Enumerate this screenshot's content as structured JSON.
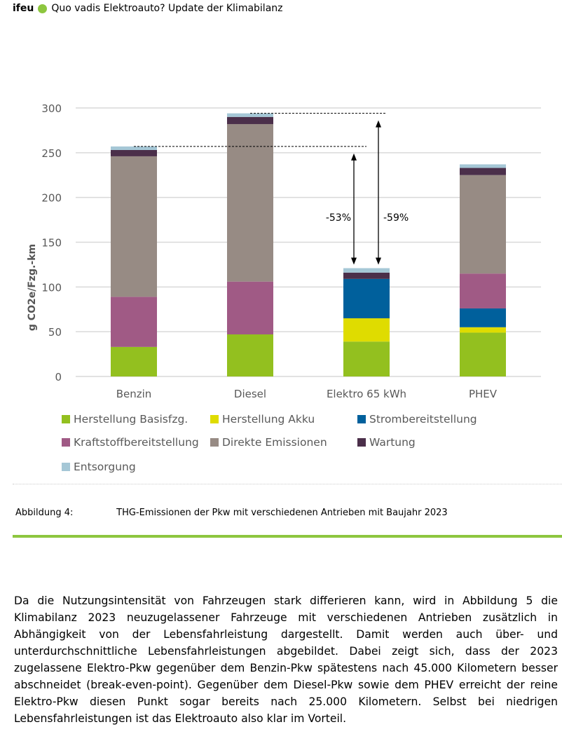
{
  "header": {
    "logo": "ifeu",
    "title": "Quo vadis Elektroauto? Update der Klimabilanz",
    "accent": "#8dc63f"
  },
  "chart_data": {
    "type": "bar",
    "stacked": true,
    "ylabel": "g CO2e/Fzg.-km",
    "ylim": [
      0,
      300
    ],
    "yticks": [
      0,
      50,
      100,
      150,
      200,
      250,
      300
    ],
    "grid": true,
    "legend_position": "bottom",
    "categories": [
      "Benzin",
      "Diesel",
      "Elektro 65 kWh",
      "PHEV"
    ],
    "series": [
      {
        "name": "Herstellung Basisfzg.",
        "color": "#93c01f",
        "values": [
          33,
          47,
          39,
          49
        ]
      },
      {
        "name": "Herstellung Akku",
        "color": "#dfdc00",
        "values": [
          0,
          0,
          26,
          6
        ]
      },
      {
        "name": "Strombereitstellung",
        "color": "#00609c",
        "values": [
          0,
          0,
          44,
          21
        ]
      },
      {
        "name": "Kraftstoffbereitstellung",
        "color": "#a05a85",
        "values": [
          56,
          59,
          0,
          39
        ]
      },
      {
        "name": "Direkte Emissionen",
        "color": "#978b84",
        "values": [
          157,
          176,
          0,
          110
        ]
      },
      {
        "name": "Wartung",
        "color": "#4b2f4a",
        "values": [
          7,
          8,
          7,
          8
        ]
      },
      {
        "name": "Entsorgung",
        "color": "#a5c7d6",
        "values": [
          4,
          4,
          5,
          4
        ]
      }
    ],
    "annotations": [
      {
        "text": "-53%",
        "from": "Benzin",
        "to": "Elektro 65 kWh"
      },
      {
        "text": "-59%",
        "from": "Diesel",
        "to": "Elektro 65 kWh"
      }
    ]
  },
  "caption": {
    "label": "Abbildung 4:",
    "text": "THG-Emissionen der Pkw mit verschiedenen Antrieben mit Baujahr 2023"
  },
  "paragraph": "Da die Nutzungsintensität von Fahrzeugen stark differieren kann, wird in Abbildung 5 die Klimabilanz 2023 neuzugelassener Fahrzeuge mit verschiedenen Antrieben zusätzlich in Abhängigkeit von der Lebensfahrleistung dargestellt. Damit werden auch über- und unterdurchschnittliche Lebensfahrleistungen abgebildet. Dabei zeigt sich, dass der 2023 zugelassene Elektro-Pkw gegenüber dem Benzin-Pkw spätestens nach 45.000 Kilometern besser abschneidet (break-even-point). Gegenüber dem Diesel-Pkw sowie dem PHEV erreicht der reine Elektro-Pkw diesen Punkt sogar bereits nach 25.000 Kilometern. Selbst bei niedrigen Lebensfahrleistungen ist das Elektroauto also klar im Vorteil."
}
